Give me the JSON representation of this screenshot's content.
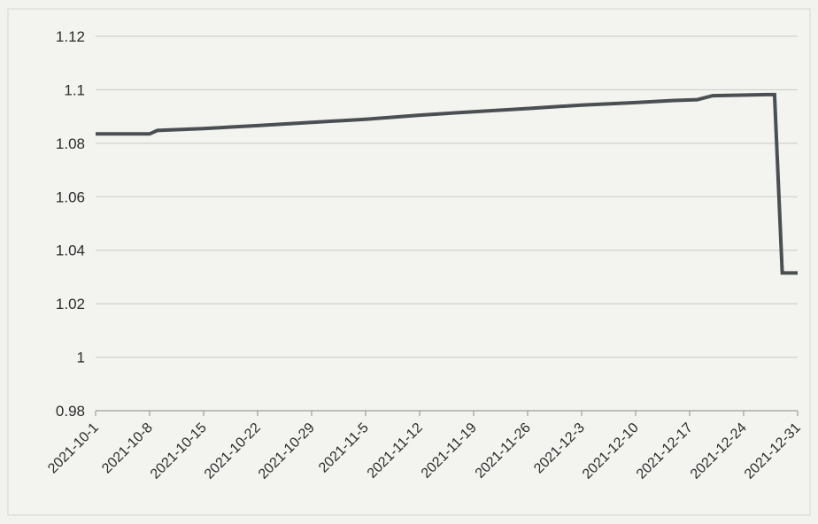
{
  "chart_data": {
    "type": "line",
    "title": "",
    "xlabel": "",
    "ylabel": "",
    "x_range": [
      "2021-10-01",
      "2021-12-31"
    ],
    "ylim": [
      0.98,
      1.12
    ],
    "y_ticks": [
      "0.98",
      "1",
      "1.02",
      "1.04",
      "1.06",
      "1.08",
      "1.1",
      "1.12"
    ],
    "y_tick_values": [
      0.98,
      1.0,
      1.02,
      1.04,
      1.06,
      1.08,
      1.1,
      1.12
    ],
    "x_ticks": [
      "2021-10-1",
      "2021-10-8",
      "2021-10-15",
      "2021-10-22",
      "2021-10-29",
      "2021-11-5",
      "2021-11-12",
      "2021-11-19",
      "2021-11-26",
      "2021-12-3",
      "2021-12-10",
      "2021-12-17",
      "2021-12-24",
      "2021-12-31"
    ],
    "x_tick_dates": [
      "2021-10-01",
      "2021-10-08",
      "2021-10-15",
      "2021-10-22",
      "2021-10-29",
      "2021-11-05",
      "2021-11-12",
      "2021-11-19",
      "2021-11-26",
      "2021-12-03",
      "2021-12-10",
      "2021-12-17",
      "2021-12-24",
      "2021-12-31"
    ],
    "grid": true,
    "legend": "none",
    "line_color": "#4a4f52",
    "grid_color": "#c9c9c6",
    "series": [
      {
        "x": [
          "2021-10-01",
          "2021-10-08",
          "2021-10-09",
          "2021-10-15",
          "2021-10-22",
          "2021-10-29",
          "2021-11-05",
          "2021-11-12",
          "2021-11-19",
          "2021-11-26",
          "2021-12-03",
          "2021-12-10",
          "2021-12-15",
          "2021-12-18",
          "2021-12-20",
          "2021-12-27",
          "2021-12-28",
          "2021-12-29",
          "2021-12-30",
          "2021-12-31"
        ],
        "values": [
          1.0835,
          1.0835,
          1.0848,
          1.0855,
          1.0866,
          1.0878,
          1.089,
          1.0905,
          1.0918,
          1.093,
          1.0943,
          1.0952,
          1.096,
          1.0963,
          1.0978,
          1.0982,
          1.0982,
          1.0315,
          1.0315,
          1.0315
        ]
      }
    ]
  }
}
